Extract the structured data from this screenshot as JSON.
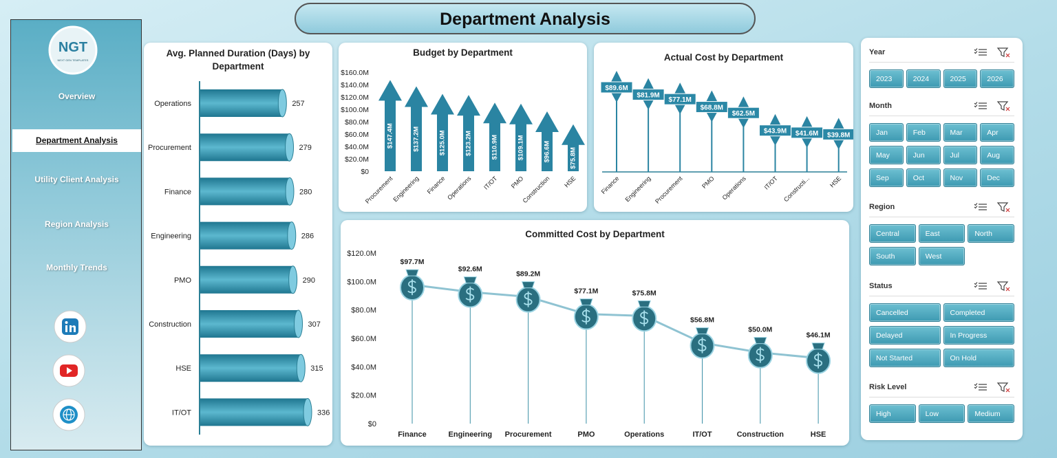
{
  "header": {
    "title": "Department Analysis",
    "logo": "NGT",
    "logo_tagline": "NEXT GEN TEMPLATES"
  },
  "nav": {
    "items": [
      "Overview",
      "Department Analysis",
      "Utility Client Analysis",
      "Region Analysis",
      "Monthly Trends"
    ],
    "active": 1
  },
  "chart_data": [
    {
      "type": "bar",
      "orientation": "horizontal",
      "title": "Avg. Planned Duration (Days) by Department",
      "categories": [
        "Operations",
        "Procurement",
        "Finance",
        "Engineering",
        "PMO",
        "Construction",
        "HSE",
        "IT/OT"
      ],
      "values": [
        257,
        279,
        280,
        286,
        290,
        307,
        315,
        336
      ],
      "color": "#2f8ea8"
    },
    {
      "type": "bar",
      "orientation": "vertical",
      "title": "Budget by Department",
      "categories": [
        "Procurement",
        "Engineering",
        "Finance",
        "Operations",
        "IT/OT",
        "PMO",
        "Construction",
        "HSE"
      ],
      "values": [
        147.4,
        137.2,
        125.0,
        123.2,
        110.9,
        109.1,
        96.6,
        75.8
      ],
      "value_labels": [
        "$147.4M",
        "$137.2M",
        "$125.0M",
        "$123.2M",
        "$110.9M",
        "$109.1M",
        "$96.6M",
        "$75.8M"
      ],
      "color": "#2a84a2",
      "ylim": [
        0,
        160
      ],
      "yticks": [
        {
          "value": 0,
          "label": "$0"
        },
        {
          "value": 20,
          "label": "$20.0M"
        },
        {
          "value": 40,
          "label": "$40.0M"
        },
        {
          "value": 60,
          "label": "$60.0M"
        },
        {
          "value": 80,
          "label": "$80.0M"
        },
        {
          "value": 100,
          "label": "$100.0M"
        },
        {
          "value": 120,
          "label": "$120.0M"
        },
        {
          "value": 140,
          "label": "$140.0M"
        },
        {
          "value": 160,
          "label": "$160.0M"
        }
      ],
      "grid": false
    },
    {
      "type": "lollipop",
      "title": "Actual Cost by Department",
      "categories": [
        "Finance",
        "Engineering",
        "Procurement",
        "PMO",
        "Operations",
        "IT/OT",
        "Constructi...",
        "HSE"
      ],
      "values": [
        89.6,
        81.9,
        77.1,
        68.8,
        62.5,
        43.9,
        41.6,
        39.8
      ],
      "value_labels": [
        "$89.6M",
        "$81.9M",
        "$77.1M",
        "$68.8M",
        "$62.5M",
        "$43.9M",
        "$41.6M",
        "$39.8M"
      ],
      "color": "#2a84a2"
    },
    {
      "type": "line",
      "title": "Committed Cost by Department",
      "categories": [
        "Finance",
        "Engineering",
        "Procurement",
        "PMO",
        "Operations",
        "IT/OT",
        "Construction",
        "HSE"
      ],
      "values": [
        97.7,
        92.6,
        89.2,
        77.1,
        75.8,
        56.8,
        50.0,
        46.1
      ],
      "value_labels": [
        "$97.7M",
        "$92.6M",
        "$89.2M",
        "$77.1M",
        "$75.8M",
        "$56.8M",
        "$50.0M",
        "$46.1M"
      ],
      "color": "#2a6f80",
      "ylim": [
        0,
        120
      ],
      "yticks": [
        {
          "value": 0,
          "label": "$0"
        },
        {
          "value": 20,
          "label": "$20.0M"
        },
        {
          "value": 40,
          "label": "$40.0M"
        },
        {
          "value": 60,
          "label": "$60.0M"
        },
        {
          "value": 80,
          "label": "$80.0M"
        },
        {
          "value": 100,
          "label": "$100.0M"
        },
        {
          "value": 120,
          "label": "$120.0M"
        }
      ],
      "grid": false
    }
  ],
  "slicers": [
    {
      "title": "Year",
      "options": [
        "2023",
        "2024",
        "2025",
        "2026"
      ]
    },
    {
      "title": "Month",
      "options": [
        "Jan",
        "Feb",
        "Mar",
        "Apr",
        "May",
        "Jun",
        "Jul",
        "Aug",
        "Sep",
        "Oct",
        "Nov",
        "Dec"
      ]
    },
    {
      "title": "Region",
      "options": [
        "Central",
        "East",
        "North",
        "South",
        "West"
      ]
    },
    {
      "title": "Status",
      "options": [
        "Cancelled",
        "Completed",
        "Delayed",
        "In Progress",
        "Not Started",
        "On Hold"
      ]
    },
    {
      "title": "Risk Level",
      "options": [
        "High",
        "Low",
        "Medium"
      ]
    }
  ]
}
